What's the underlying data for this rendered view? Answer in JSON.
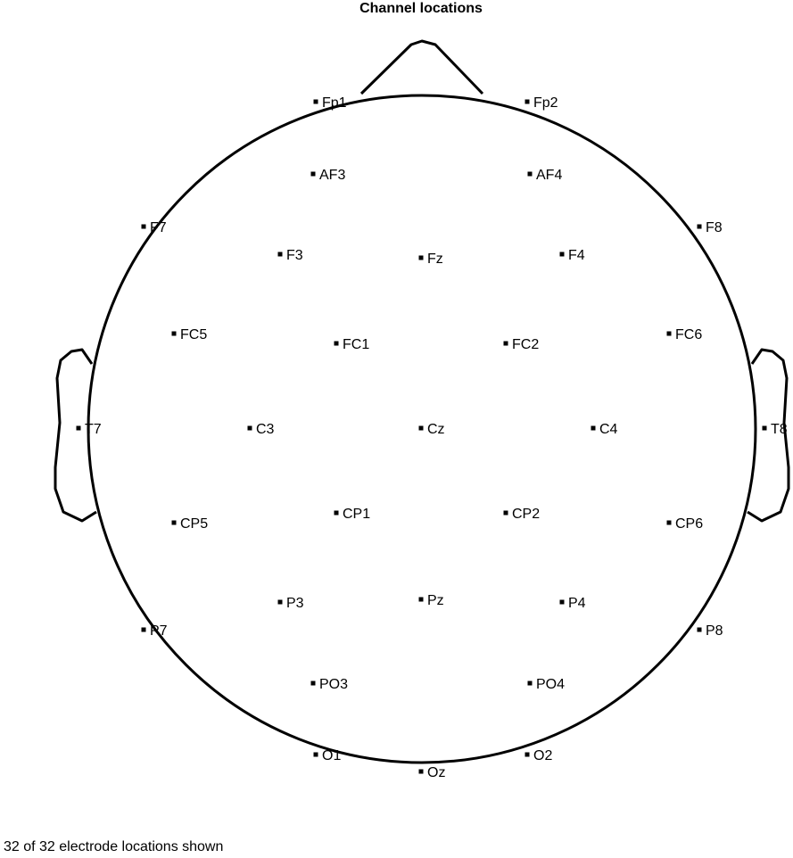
{
  "title": "Channel locations",
  "footer_text": "32 of 32 electrode locations shown",
  "colors": {
    "outline": "#000000",
    "marker": "#000000",
    "background": "#ffffff"
  },
  "electrodes": [
    {
      "label": "Fp1"
    },
    {
      "label": "Fp2"
    },
    {
      "label": "AF3"
    },
    {
      "label": "AF4"
    },
    {
      "label": "F7"
    },
    {
      "label": "F3"
    },
    {
      "label": "Fz"
    },
    {
      "label": "F4"
    },
    {
      "label": "F8"
    },
    {
      "label": "FC5"
    },
    {
      "label": "FC1"
    },
    {
      "label": "FC2"
    },
    {
      "label": "FC6"
    },
    {
      "label": "T7"
    },
    {
      "label": "C3"
    },
    {
      "label": "Cz"
    },
    {
      "label": "C4"
    },
    {
      "label": "T8"
    },
    {
      "label": "CP5"
    },
    {
      "label": "CP1"
    },
    {
      "label": "CP2"
    },
    {
      "label": "CP6"
    },
    {
      "label": "P7"
    },
    {
      "label": "P3"
    },
    {
      "label": "Pz"
    },
    {
      "label": "P4"
    },
    {
      "label": "P8"
    },
    {
      "label": "PO3"
    },
    {
      "label": "PO4"
    },
    {
      "label": "O1"
    },
    {
      "label": "Oz"
    },
    {
      "label": "O2"
    }
  ]
}
